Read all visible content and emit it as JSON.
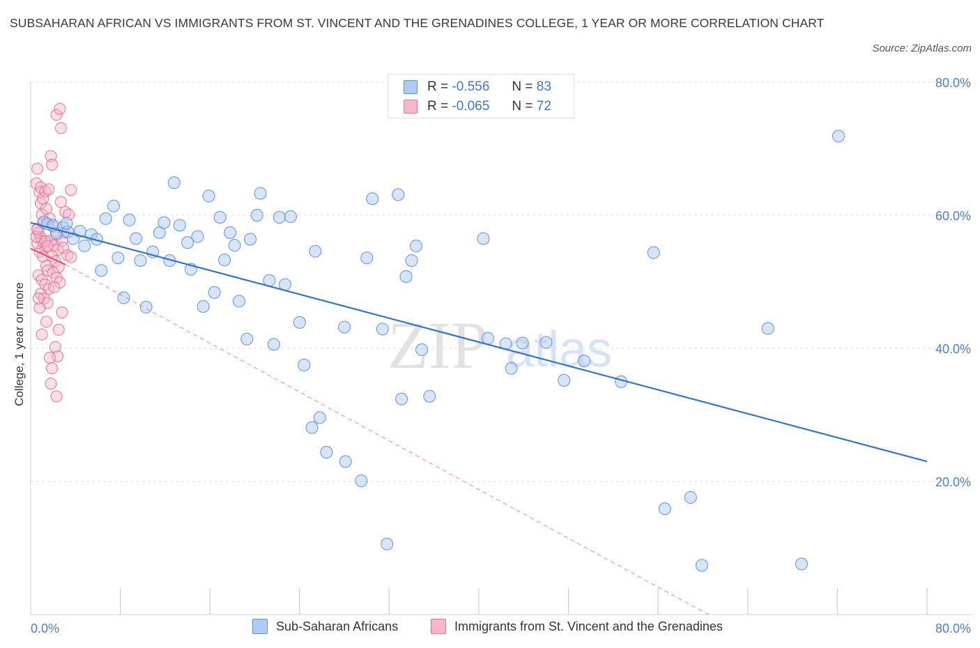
{
  "header": {
    "title": "SUBSAHARAN AFRICAN VS IMMIGRANTS FROM ST. VINCENT AND THE GRENADINES COLLEGE, 1 YEAR OR MORE CORRELATION CHART",
    "source": "Source: ZipAtlas.com"
  },
  "legend": {
    "blue": {
      "r_label": "R = ",
      "r_value": "-0.556",
      "n_label": "N = ",
      "n_value": "83"
    },
    "pink": {
      "r_label": "R = ",
      "r_value": "-0.065",
      "n_label": "N = ",
      "n_value": "72"
    }
  },
  "bottom_legend": {
    "blue_label": "Sub-Saharan Africans",
    "pink_label": "Immigrants from St. Vincent and the Grenadines"
  },
  "watermark": {
    "zip": "ZIP",
    "atlas": "atlas"
  },
  "colors": {
    "blue_fill": "#aecbf5",
    "blue_stroke": "#5d92dc",
    "blue_line": "#2f72d0",
    "pink_fill": "#f7b7c9",
    "pink_stroke": "#e37396",
    "pink_line": "#e0517f",
    "axis_label": "#4a7fcb",
    "grid": "#dddddd"
  },
  "chart_data": {
    "type": "scatter",
    "title": "SUBSAHARAN AFRICAN VS IMMIGRANTS FROM ST. VINCENT AND THE GRENADINES COLLEGE, 1 YEAR OR MORE CORRELATION CHART",
    "xlabel": "",
    "ylabel": "College, 1 year or more",
    "xlim": [
      0,
      80
    ],
    "ylim": [
      0,
      80
    ],
    "x_tick_labels": [
      "0.0%",
      "80.0%"
    ],
    "y_ticks": [
      20,
      40,
      60,
      80
    ],
    "y_tick_labels": [
      "20.0%",
      "40.0%",
      "60.0%",
      "80.0%"
    ],
    "grid": true,
    "series": [
      {
        "name": "Sub-Saharan Africans",
        "color": "#aecbf5",
        "points": [
          [
            1.2,
            59.0
          ],
          [
            1.5,
            58.7
          ],
          [
            2.0,
            58.5
          ],
          [
            2.3,
            57.3
          ],
          [
            2.9,
            58.2
          ],
          [
            3.3,
            57.5
          ],
          [
            3.8,
            56.5
          ],
          [
            4.4,
            57.6
          ],
          [
            4.8,
            55.4
          ],
          [
            5.4,
            57.1
          ],
          [
            5.9,
            56.4
          ],
          [
            6.3,
            51.7
          ],
          [
            6.7,
            59.5
          ],
          [
            7.4,
            61.4
          ],
          [
            7.8,
            53.6
          ],
          [
            8.3,
            47.6
          ],
          [
            8.8,
            59.3
          ],
          [
            9.4,
            56.5
          ],
          [
            9.8,
            53.2
          ],
          [
            10.3,
            46.2
          ],
          [
            10.9,
            54.5
          ],
          [
            11.5,
            57.4
          ],
          [
            11.9,
            58.9
          ],
          [
            12.4,
            53.2
          ],
          [
            12.8,
            64.9
          ],
          [
            13.3,
            58.5
          ],
          [
            14.0,
            55.9
          ],
          [
            14.3,
            51.9
          ],
          [
            14.9,
            56.8
          ],
          [
            15.4,
            46.3
          ],
          [
            15.9,
            62.9
          ],
          [
            16.4,
            48.4
          ],
          [
            16.9,
            59.7
          ],
          [
            17.3,
            53.3
          ],
          [
            17.8,
            57.4
          ],
          [
            18.2,
            55.5
          ],
          [
            18.6,
            47.1
          ],
          [
            19.3,
            41.4
          ],
          [
            19.6,
            56.4
          ],
          [
            20.2,
            60.0
          ],
          [
            20.5,
            63.3
          ],
          [
            21.3,
            50.2
          ],
          [
            21.7,
            40.6
          ],
          [
            22.2,
            59.7
          ],
          [
            22.7,
            49.6
          ],
          [
            23.2,
            59.8
          ],
          [
            24.0,
            43.9
          ],
          [
            24.4,
            37.5
          ],
          [
            25.1,
            28.1
          ],
          [
            25.4,
            54.6
          ],
          [
            25.8,
            29.6
          ],
          [
            26.4,
            24.4
          ],
          [
            28.0,
            43.2
          ],
          [
            28.1,
            23.0
          ],
          [
            29.5,
            20.1
          ],
          [
            30.0,
            53.6
          ],
          [
            30.5,
            62.5
          ],
          [
            31.4,
            42.9
          ],
          [
            31.8,
            10.6
          ],
          [
            32.8,
            63.1
          ],
          [
            33.1,
            32.4
          ],
          [
            33.5,
            50.8
          ],
          [
            34.0,
            53.2
          ],
          [
            34.4,
            55.4
          ],
          [
            34.9,
            39.8
          ],
          [
            35.6,
            32.8
          ],
          [
            40.4,
            56.5
          ],
          [
            40.8,
            41.5
          ],
          [
            42.4,
            40.7
          ],
          [
            42.9,
            37.0
          ],
          [
            43.9,
            40.8
          ],
          [
            46.0,
            40.9
          ],
          [
            47.6,
            35.2
          ],
          [
            49.4,
            38.1
          ],
          [
            52.7,
            35.0
          ],
          [
            55.6,
            54.4
          ],
          [
            56.6,
            15.9
          ],
          [
            58.9,
            17.6
          ],
          [
            59.9,
            7.4
          ],
          [
            65.8,
            43.0
          ],
          [
            68.8,
            7.6
          ],
          [
            72.1,
            71.9
          ],
          [
            3.2,
            58.8
          ]
        ]
      },
      {
        "name": "Immigrants from St. Vincent and the Grenadines",
        "color": "#f7b7c9",
        "points": [
          [
            0.5,
            64.8
          ],
          [
            0.6,
            67.0
          ],
          [
            0.8,
            63.5
          ],
          [
            0.9,
            61.8
          ],
          [
            1.0,
            60.1
          ],
          [
            1.1,
            58.8
          ],
          [
            0.6,
            58.0
          ],
          [
            0.7,
            57.4
          ],
          [
            0.9,
            56.7
          ],
          [
            1.0,
            56.1
          ],
          [
            1.2,
            55.8
          ],
          [
            1.3,
            55.1
          ],
          [
            0.8,
            54.5
          ],
          [
            1.1,
            53.8
          ],
          [
            1.4,
            52.4
          ],
          [
            1.5,
            51.7
          ],
          [
            0.7,
            51.0
          ],
          [
            1.0,
            50.3
          ],
          [
            1.3,
            49.6
          ],
          [
            1.6,
            48.9
          ],
          [
            0.9,
            48.2
          ],
          [
            1.2,
            47.5
          ],
          [
            1.5,
            46.8
          ],
          [
            0.8,
            46.1
          ],
          [
            1.1,
            62.5
          ],
          [
            1.4,
            61.0
          ],
          [
            1.7,
            59.5
          ],
          [
            2.0,
            58.3
          ],
          [
            2.3,
            57.0
          ],
          [
            1.8,
            56.2
          ],
          [
            2.1,
            55.5
          ],
          [
            2.4,
            54.8
          ],
          [
            1.9,
            53.9
          ],
          [
            2.2,
            53.1
          ],
          [
            2.5,
            52.2
          ],
          [
            2.0,
            51.4
          ],
          [
            2.3,
            50.6
          ],
          [
            2.6,
            49.9
          ],
          [
            2.1,
            49.2
          ],
          [
            2.8,
            45.4
          ],
          [
            2.5,
            42.8
          ],
          [
            2.2,
            40.2
          ],
          [
            2.4,
            38.8
          ],
          [
            1.7,
            38.6
          ],
          [
            1.9,
            37.0
          ],
          [
            1.8,
            34.7
          ],
          [
            2.3,
            32.8
          ],
          [
            2.3,
            75.1
          ],
          [
            2.6,
            76.0
          ],
          [
            2.7,
            73.1
          ],
          [
            1.8,
            68.9
          ],
          [
            1.9,
            67.6
          ],
          [
            0.9,
            64.2
          ],
          [
            1.3,
            63.6
          ],
          [
            1.6,
            63.9
          ],
          [
            2.7,
            62.0
          ],
          [
            3.1,
            60.5
          ],
          [
            3.0,
            57.4
          ],
          [
            2.8,
            56.2
          ],
          [
            2.9,
            55.1
          ],
          [
            3.3,
            54.0
          ],
          [
            3.6,
            53.7
          ],
          [
            0.6,
            55.8
          ],
          [
            0.5,
            56.8
          ],
          [
            0.6,
            57.9
          ],
          [
            1.3,
            56.1
          ],
          [
            1.5,
            55.4
          ],
          [
            1.4,
            44.0
          ],
          [
            1.0,
            42.1
          ],
          [
            0.7,
            47.5
          ],
          [
            3.4,
            60.1
          ],
          [
            3.6,
            63.8
          ]
        ]
      }
    ],
    "trendlines": [
      {
        "series": "Sub-Saharan Africans",
        "from": [
          0,
          58.9
        ],
        "to": [
          80,
          23.0
        ],
        "style": "solid"
      },
      {
        "series": "Immigrants from St. Vincent and the Grenadines",
        "from": [
          0,
          55.0
        ],
        "to": [
          3.1,
          52.6
        ],
        "style": "solid"
      },
      {
        "series": "Immigrants from St. Vincent and the Grenadines",
        "from": [
          3.1,
          52.6
        ],
        "to": [
          60.5,
          0
        ],
        "style": "dashed"
      }
    ]
  }
}
